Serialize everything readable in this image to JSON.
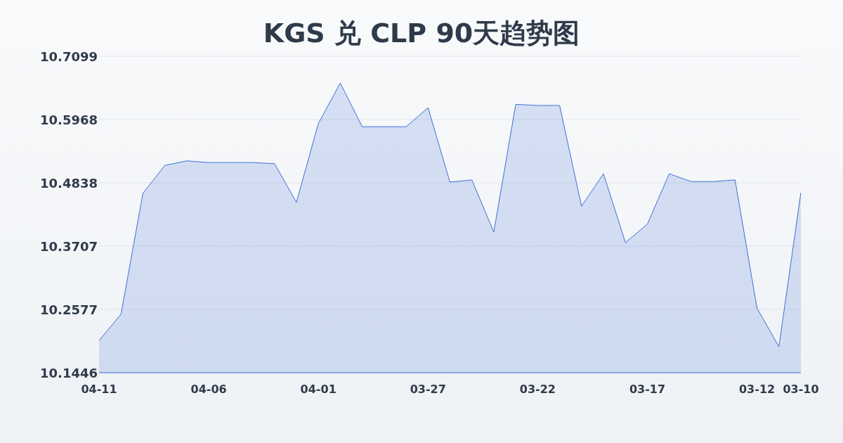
{
  "chart_data": {
    "type": "area",
    "title": "KGS 兑 CLP 90天趋势图",
    "categories": [
      "04-11",
      null,
      null,
      null,
      null,
      "04-06",
      null,
      null,
      null,
      null,
      "04-01",
      null,
      null,
      null,
      null,
      "03-27",
      null,
      null,
      null,
      null,
      "03-22",
      null,
      null,
      null,
      null,
      "03-17",
      null,
      null,
      null,
      null,
      "03-12",
      null,
      "03-10"
    ],
    "series": [
      {
        "color": "#3d6fd6",
        "values": [
          10.202,
          10.249,
          10.465,
          10.515,
          10.523,
          10.52,
          10.52,
          10.52,
          10.518,
          10.449,
          10.59,
          10.662,
          10.584,
          10.584,
          10.584,
          10.618,
          10.485,
          10.489,
          10.396,
          10.624,
          10.622,
          10.622,
          10.442,
          10.5,
          10.377,
          10.41,
          10.5,
          10.486,
          10.486,
          10.489,
          10.26,
          10.191,
          10.466
        ]
      }
    ],
    "ylim": [
      10.1446,
      10.7099
    ],
    "yticks": [
      10.1446,
      10.2577,
      10.3707,
      10.4838,
      10.5968,
      10.7099
    ],
    "grid": "y"
  }
}
